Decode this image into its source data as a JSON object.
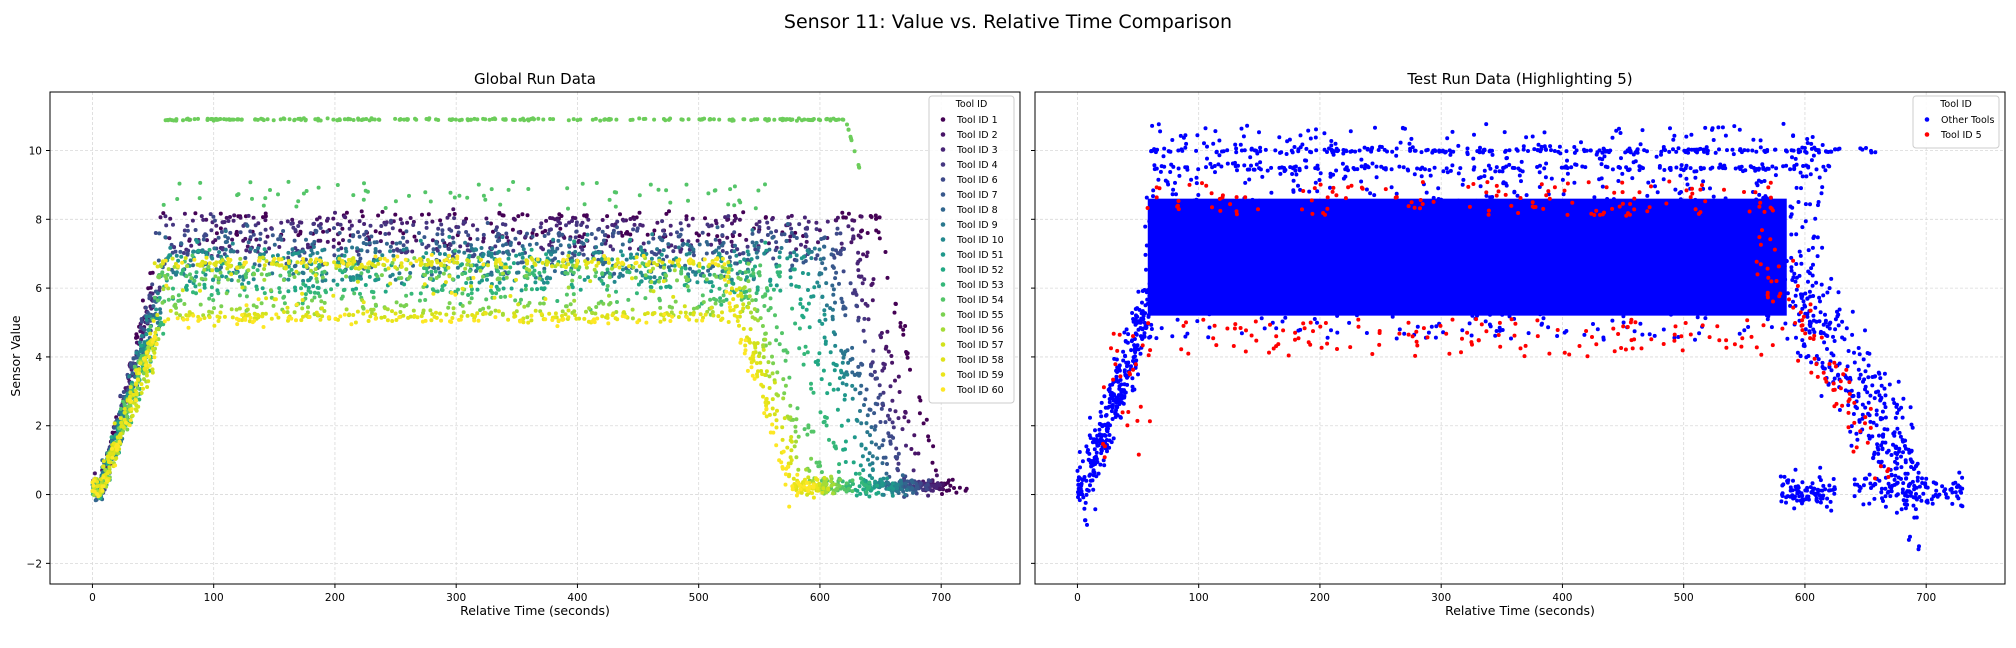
{
  "figure": {
    "title": "Sensor 11: Value vs. Relative Time Comparison",
    "shared_ylabel": "Sensor Value"
  },
  "chart_data": [
    {
      "type": "scatter",
      "title": "Global Run Data",
      "xlabel": "Relative Time (seconds)",
      "ylabel": "Sensor Value",
      "xlim": [
        -35,
        765
      ],
      "ylim": [
        -2.6,
        11.7
      ],
      "x_ticks": [
        0,
        100,
        200,
        300,
        400,
        500,
        600,
        700
      ],
      "y_ticks": [
        -2,
        0,
        2,
        4,
        6,
        8,
        10
      ],
      "grid": true,
      "legend": {
        "title": "Tool ID",
        "placement": "top-right"
      },
      "series": [
        {
          "name": "Tool ID 1",
          "color": "#440154",
          "end": 720,
          "plateau": [
            7.2,
            8.3
          ],
          "bands": [
            7.6,
            8.1
          ]
        },
        {
          "name": "Tool ID 2",
          "color": "#481467",
          "end": 705,
          "plateau": [
            7.0,
            8.3
          ],
          "bands": [
            7.4,
            8.0
          ]
        },
        {
          "name": "Tool ID 3",
          "color": "#482576",
          "end": 698,
          "plateau": [
            6.9,
            8.2
          ],
          "bands": [
            7.2,
            7.9
          ]
        },
        {
          "name": "Tool ID 4",
          "color": "#453781",
          "end": 690,
          "plateau": [
            6.8,
            8.2
          ],
          "bands": [
            7.1,
            7.8
          ]
        },
        {
          "name": "Tool ID 6",
          "color": "#3e4989",
          "end": 688,
          "plateau": [
            6.6,
            8.1
          ],
          "bands": [
            7.0,
            7.6
          ]
        },
        {
          "name": "Tool ID 7",
          "color": "#38588c",
          "end": 680,
          "plateau": [
            6.4,
            8.0
          ],
          "bands": [
            6.8,
            7.5
          ]
        },
        {
          "name": "Tool ID 8",
          "color": "#31668e",
          "end": 675,
          "plateau": [
            6.3,
            7.9
          ],
          "bands": [
            6.6,
            7.3
          ]
        },
        {
          "name": "Tool ID 9",
          "color": "#2a788e",
          "end": 670,
          "plateau": [
            6.1,
            7.7
          ],
          "bands": [
            6.4,
            7.1
          ]
        },
        {
          "name": "Tool ID 10",
          "color": "#23888e",
          "end": 665,
          "plateau": [
            6.0,
            7.6
          ],
          "bands": [
            6.3,
            7.0
          ]
        },
        {
          "name": "Tool ID 51",
          "color": "#1f988b",
          "end": 660,
          "plateau": [
            5.8,
            7.5
          ],
          "bands": [
            6.2,
            6.9
          ]
        },
        {
          "name": "Tool ID 52",
          "color": "#22a884",
          "end": 650,
          "plateau": [
            5.6,
            7.4
          ],
          "bands": [
            6.0,
            6.7
          ]
        },
        {
          "name": "Tool ID 53",
          "color": "#35b779",
          "end": 640,
          "plateau": [
            5.4,
            7.2
          ],
          "bands": [
            5.9,
            6.5
          ]
        },
        {
          "name": "Tool ID 54",
          "color": "#54c568",
          "end": 625,
          "plateau": [
            5.3,
            7.0
          ],
          "bands": [
            5.7,
            6.4
          ]
        },
        {
          "name": "Tool ID 55",
          "color": "#7ad151",
          "end": 615,
          "plateau": [
            5.2,
            6.9
          ],
          "bands": [
            5.5,
            6.3
          ]
        },
        {
          "name": "Tool ID 56",
          "color": "#a5db36",
          "end": 610,
          "plateau": [
            5.1,
            6.9
          ],
          "bands": [
            5.3,
            6.6
          ]
        },
        {
          "name": "Tool ID 57",
          "color": "#d2e21b",
          "end": 605,
          "plateau": [
            5.0,
            6.9
          ],
          "bands": [
            5.2,
            6.8
          ]
        },
        {
          "name": "Tool ID 58",
          "color": "#e0e219",
          "end": 600,
          "plateau": [
            5.0,
            6.9
          ],
          "bands": [
            5.2,
            6.7
          ]
        },
        {
          "name": "Tool ID 59",
          "color": "#eae51a",
          "end": 598,
          "plateau": [
            4.9,
            6.9
          ],
          "bands": [
            5.1,
            6.7
          ]
        },
        {
          "name": "Tool ID 60",
          "color": "#fde725",
          "end": 595,
          "plateau": [
            4.8,
            6.9
          ],
          "bands": [
            5.1,
            6.8
          ]
        }
      ],
      "extra_band": {
        "color": "#6ccd5a",
        "x_range": [
          58,
          620
        ],
        "y": 10.9
      },
      "high_outliers": {
        "color": "#54c568",
        "y_range": [
          8.3,
          9.1
        ]
      }
    },
    {
      "type": "scatter",
      "title": "Test Run Data (Highlighting 5)",
      "xlabel": "Relative Time (seconds)",
      "xlim": [
        -35,
        765
      ],
      "ylim": [
        -2.6,
        11.7
      ],
      "x_ticks": [
        0,
        100,
        200,
        300,
        400,
        500,
        600,
        700
      ],
      "y_ticks": [
        -2,
        0,
        2,
        4,
        6,
        8,
        10
      ],
      "grid": true,
      "legend": {
        "title": "Tool ID",
        "placement": "top-right"
      },
      "series": [
        {
          "name": "Other Tools",
          "color": "#0000ff"
        },
        {
          "name": "Tool ID 5",
          "color": "#ff0000"
        }
      ],
      "plateau": [
        4.3,
        10.1
      ],
      "end_range": [
        570,
        730
      ]
    }
  ]
}
